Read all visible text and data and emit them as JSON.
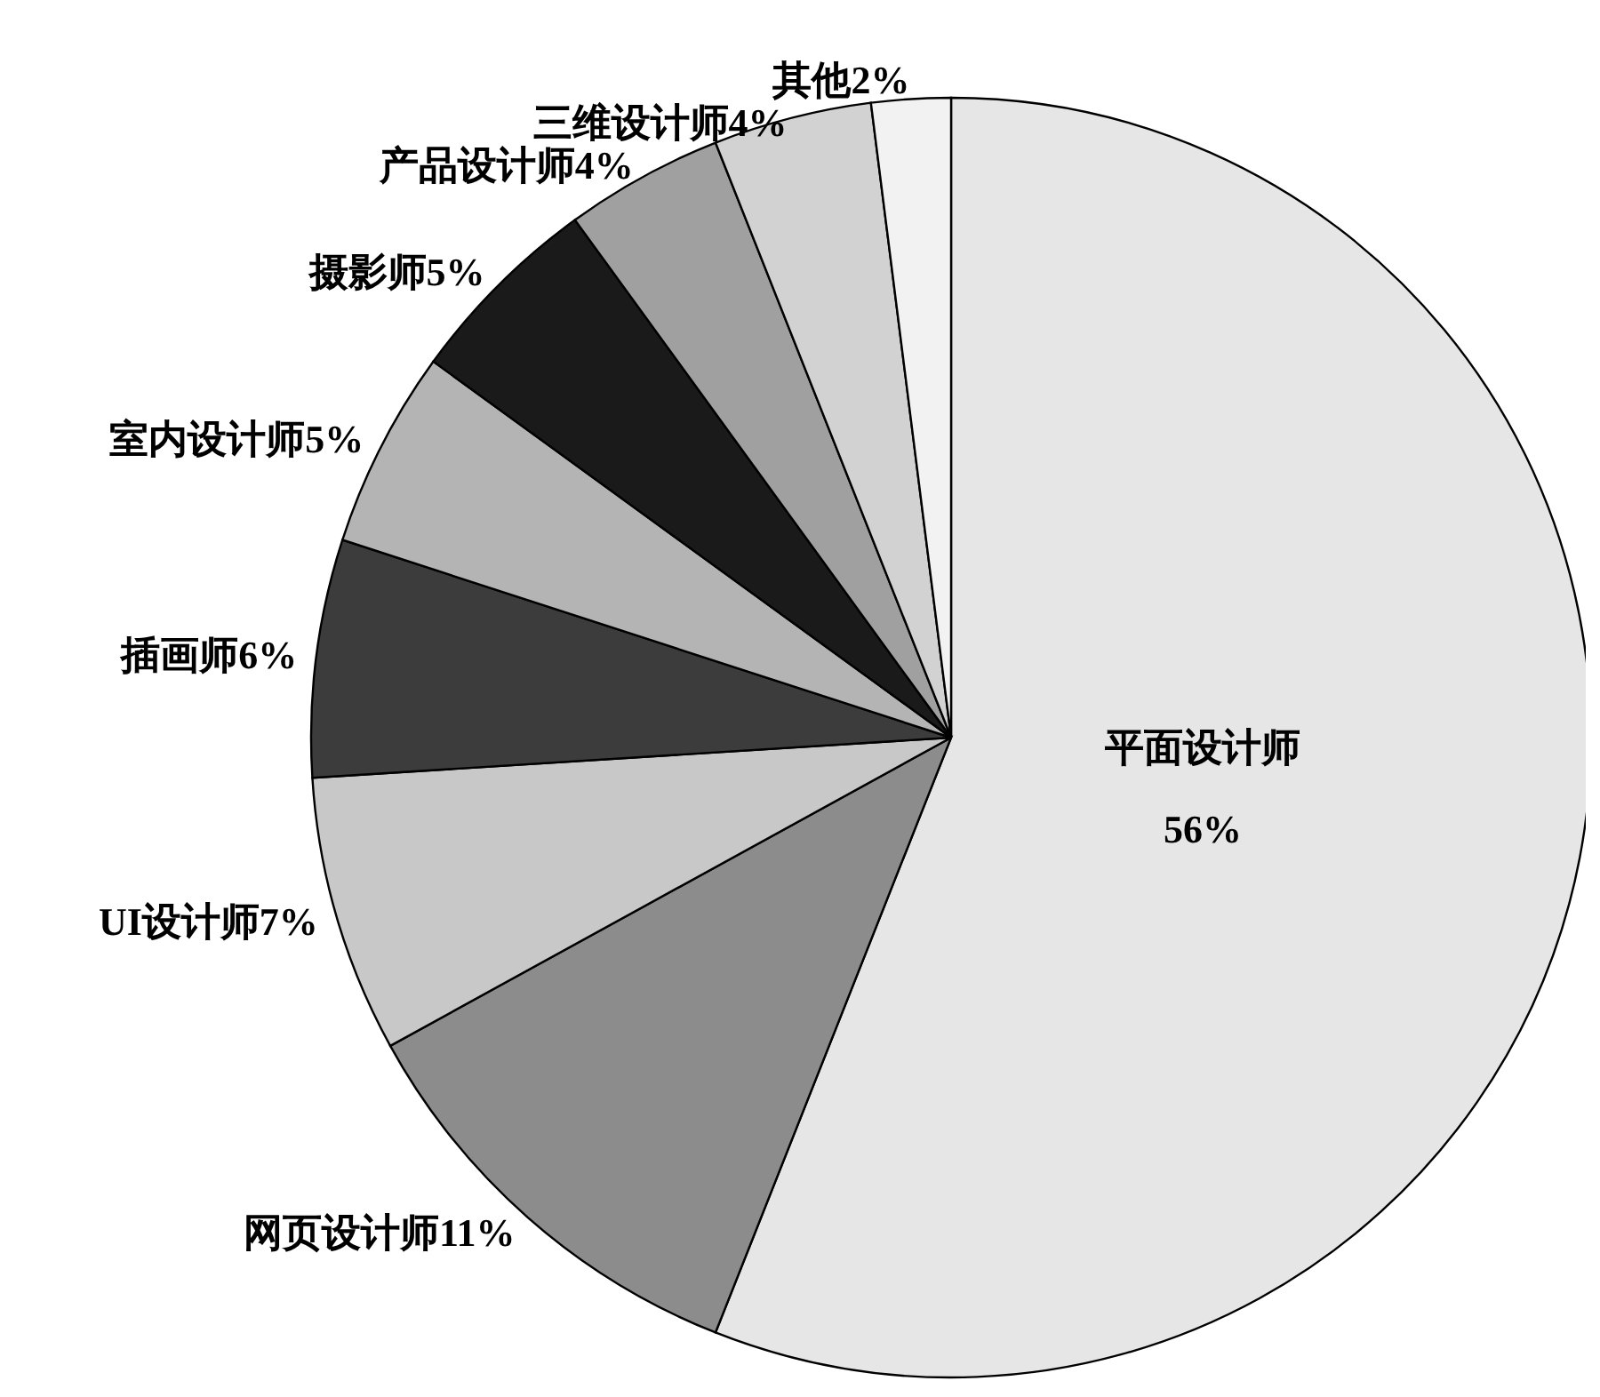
{
  "chart_data": {
    "type": "pie",
    "categories": [
      "平面设计师",
      "网页设计师",
      "UI设计师",
      "插画师",
      "室内设计师",
      "摄影师",
      "产品设计师",
      "三维设计师",
      "其他"
    ],
    "values": [
      56,
      11,
      7,
      6,
      5,
      5,
      4,
      4,
      2
    ],
    "colors": [
      "#e6e6e6",
      "#8c8c8c",
      "#c8c8c8",
      "#3c3c3c",
      "#b4b4b4",
      "#1a1a1a",
      "#a0a0a0",
      "#d2d2d2",
      "#f2f2f2"
    ],
    "value_labels": [
      "56%",
      "11%",
      "7%",
      "6%",
      "5%",
      "5%",
      "4%",
      "4%",
      "2%"
    ]
  }
}
